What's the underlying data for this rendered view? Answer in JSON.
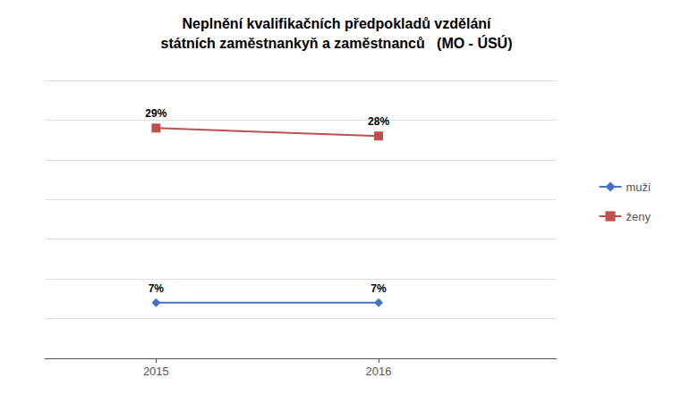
{
  "chart_data": {
    "type": "line",
    "title": "Neplnění kvalifikačních předpokladů vzdělání\nstátních zaměstnankyň a zaměstnanců   (MO - ÚSÚ)",
    "x": [
      2015,
      2016
    ],
    "xlim": [
      2014.5,
      2016.8
    ],
    "xticks": [
      2015,
      2016
    ],
    "ylim": [
      0,
      35
    ],
    "yticks": [
      0,
      5,
      10,
      15,
      20,
      25,
      30,
      35
    ],
    "grid": true,
    "tick_labels": "x",
    "legend": "right",
    "data_labels": true,
    "series": [
      {
        "name": "muži",
        "color": "#4472C4",
        "marker": "diamond",
        "values": [
          7,
          7
        ],
        "value_labels": [
          "7%",
          "7%"
        ]
      },
      {
        "name": "ženy",
        "color": "#C0504D",
        "marker": "square",
        "values": [
          29,
          28
        ],
        "value_labels": [
          "29%",
          "28%"
        ]
      }
    ]
  }
}
